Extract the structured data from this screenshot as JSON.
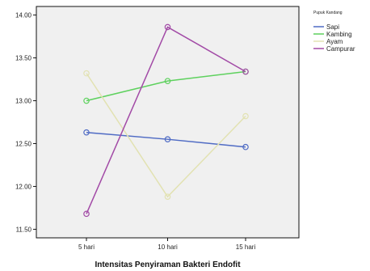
{
  "chart_data": {
    "type": "line",
    "xlabel": "Intensitas Penyiraman Bakteri Endofit",
    "ylabel": "",
    "categories": [
      "5 hari",
      "10 hari",
      "15 hari"
    ],
    "ylim": [
      11.4,
      14.1
    ],
    "yticks": [
      "11.50",
      "12.00",
      "12.50",
      "13.00",
      "13.50",
      "14.00"
    ],
    "grid": false,
    "legend": {
      "title": "Pupuk Kandang",
      "placement": "top-right-outside"
    },
    "series": [
      {
        "name": "Sapi",
        "color": "#4f6bc4",
        "values": [
          12.63,
          12.55,
          12.46
        ]
      },
      {
        "name": "Kambing",
        "color": "#5ed15e",
        "values": [
          13.0,
          13.23,
          13.34
        ]
      },
      {
        "name": "Ayam",
        "color": "#e2e2b2",
        "values": [
          13.32,
          11.88,
          12.82
        ]
      },
      {
        "name": "Campurar",
        "color": "#a24aa6",
        "values": [
          11.68,
          13.86,
          13.34
        ]
      }
    ]
  }
}
